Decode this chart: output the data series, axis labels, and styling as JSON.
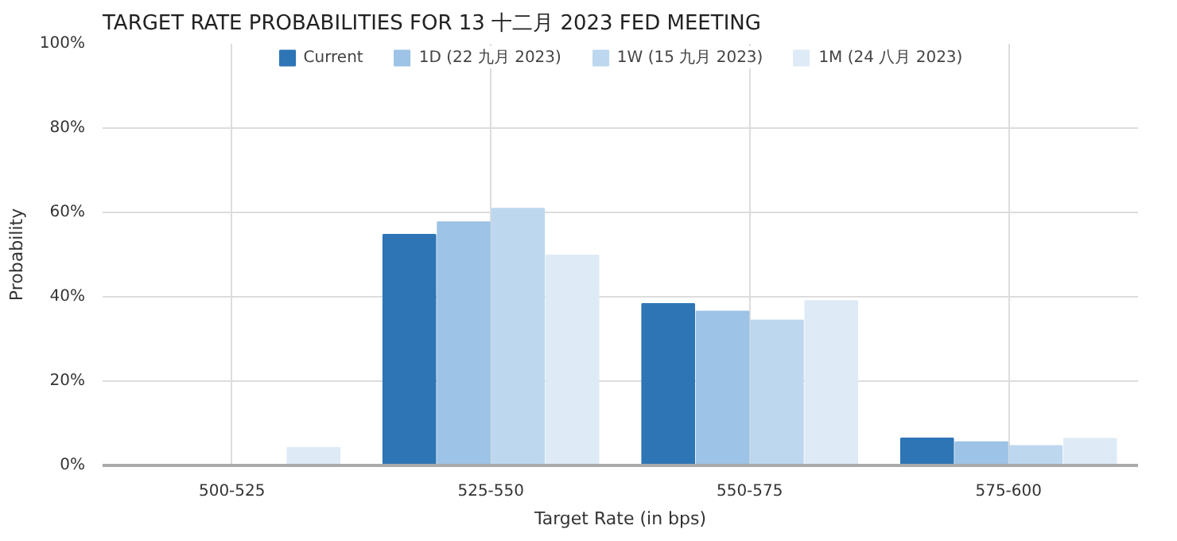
{
  "chart_data": {
    "type": "bar",
    "title": "TARGET RATE PROBABILITIES FOR 13 十二月 2023 FED MEETING",
    "xlabel": "Target Rate (in bps)",
    "ylabel": "Probability",
    "categories": [
      "500-525",
      "525-550",
      "550-575",
      "575-600"
    ],
    "series": [
      {
        "name": "Current",
        "color": "#2e75b6",
        "values": [
          0,
          54.7,
          38.3,
          6.4
        ]
      },
      {
        "name": "1D (22 九月 2023)",
        "color": "#9dc3e6",
        "values": [
          0,
          57.7,
          36.5,
          5.5
        ]
      },
      {
        "name": "1W (15 九月 2023)",
        "color": "#bdd7ee",
        "values": [
          0,
          60.9,
          34.4,
          4.6
        ]
      },
      {
        "name": "1M (24 八月 2023)",
        "color": "#deebf7",
        "values": [
          4.2,
          49.8,
          39.0,
          6.3
        ]
      }
    ],
    "ylim": [
      0,
      100
    ],
    "yticks": [
      {
        "value": 0,
        "label": "0%"
      },
      {
        "value": 20,
        "label": "20%"
      },
      {
        "value": 40,
        "label": "40%"
      },
      {
        "value": 60,
        "label": "60%"
      },
      {
        "value": 80,
        "label": "80%"
      },
      {
        "value": 100,
        "label": "100%"
      }
    ],
    "grid": true,
    "legend": "top"
  }
}
